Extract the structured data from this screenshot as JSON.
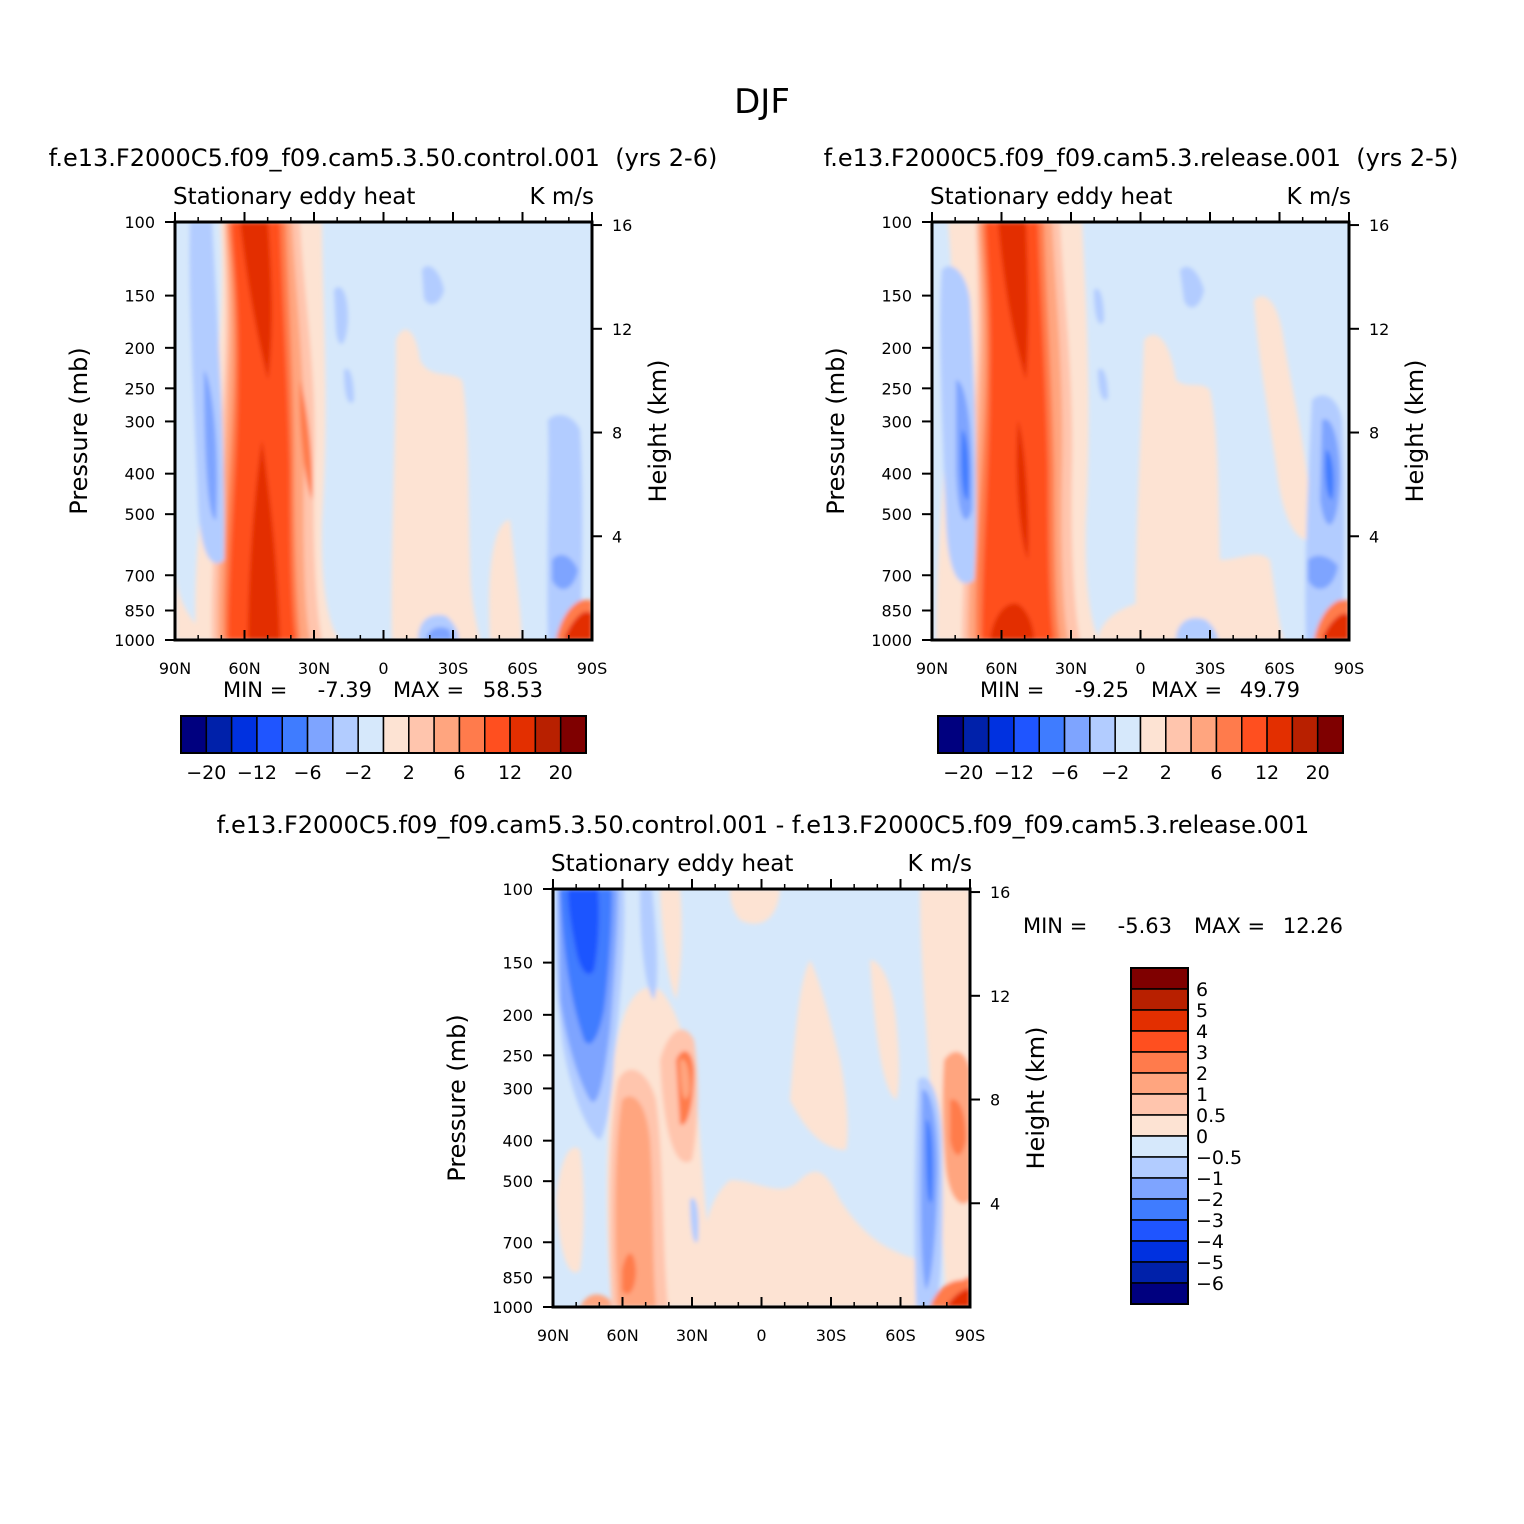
{
  "figure_title": "DJF",
  "chart_data": [
    {
      "type": "heatmap",
      "panel": "control",
      "title": "f.e13.F2000C5.f09_f09.cam5.3.50.control.001  (yrs 2-6)",
      "left_label": "Stationary eddy heat",
      "units_label": "K m/s",
      "ylabel": "Pressure (mb)",
      "right_ylabel": "Height (km)",
      "x_ticks": [
        "90N",
        "60N",
        "30N",
        "0",
        "30S",
        "60S",
        "90S"
      ],
      "y_ticks": [
        "100",
        "150",
        "200",
        "250",
        "300",
        "400",
        "500",
        "700",
        "850",
        "1000"
      ],
      "right_ticks": [
        "16",
        "12",
        "8",
        "4"
      ],
      "min_label": "MIN =",
      "min_value": "-7.39",
      "max_label": "MAX =",
      "max_value": "58.53",
      "colorbar_labels": [
        "-20",
        "-12",
        "-6",
        "-2",
        "2",
        "6",
        "12",
        "20"
      ]
    },
    {
      "type": "heatmap",
      "panel": "release",
      "title": "f.e13.F2000C5.f09_f09.cam5.3.release.001  (yrs 2-5)",
      "left_label": "Stationary eddy heat",
      "units_label": "K m/s",
      "ylabel": "Pressure (mb)",
      "right_ylabel": "Height (km)",
      "x_ticks": [
        "90N",
        "60N",
        "30N",
        "0",
        "30S",
        "60S",
        "90S"
      ],
      "y_ticks": [
        "100",
        "150",
        "200",
        "250",
        "300",
        "400",
        "500",
        "700",
        "850",
        "1000"
      ],
      "right_ticks": [
        "16",
        "12",
        "8",
        "4"
      ],
      "min_label": "MIN =",
      "min_value": "-9.25",
      "max_label": "MAX =",
      "max_value": "49.79",
      "colorbar_labels": [
        "-20",
        "-12",
        "-6",
        "-2",
        "2",
        "6",
        "12",
        "20"
      ]
    },
    {
      "type": "heatmap",
      "panel": "difference",
      "title": "f.e13.F2000C5.f09_f09.cam5.3.50.control.001 - f.e13.F2000C5.f09_f09.cam5.3.release.001",
      "left_label": "Stationary eddy heat",
      "units_label": "K m/s",
      "ylabel": "Pressure (mb)",
      "right_ylabel": "Height (km)",
      "x_ticks": [
        "90N",
        "60N",
        "30N",
        "0",
        "30S",
        "60S",
        "90S"
      ],
      "y_ticks": [
        "100",
        "150",
        "200",
        "250",
        "300",
        "400",
        "500",
        "700",
        "850",
        "1000"
      ],
      "right_ticks": [
        "16",
        "12",
        "8",
        "4"
      ],
      "min_label": "MIN =",
      "min_value": "-5.63",
      "max_label": "MAX =",
      "max_value": "12.26",
      "colorbar_labels": [
        "6",
        "5",
        "4",
        "3",
        "2",
        "1",
        "0.5",
        "0",
        "-0.5",
        "-1",
        "-2",
        "-3",
        "-4",
        "-5",
        "-6"
      ]
    }
  ],
  "palette": [
    "#00007f",
    "#0021aa",
    "#0031e0",
    "#1f55ff",
    "#3f7cff",
    "#7ea4ff",
    "#b2ccff",
    "#d6e8fb",
    "#fde3d3",
    "#ffc5ad",
    "#ffa57f",
    "#ff7b4c",
    "#ff4f1f",
    "#e32f00",
    "#b82000",
    "#7f0000"
  ]
}
